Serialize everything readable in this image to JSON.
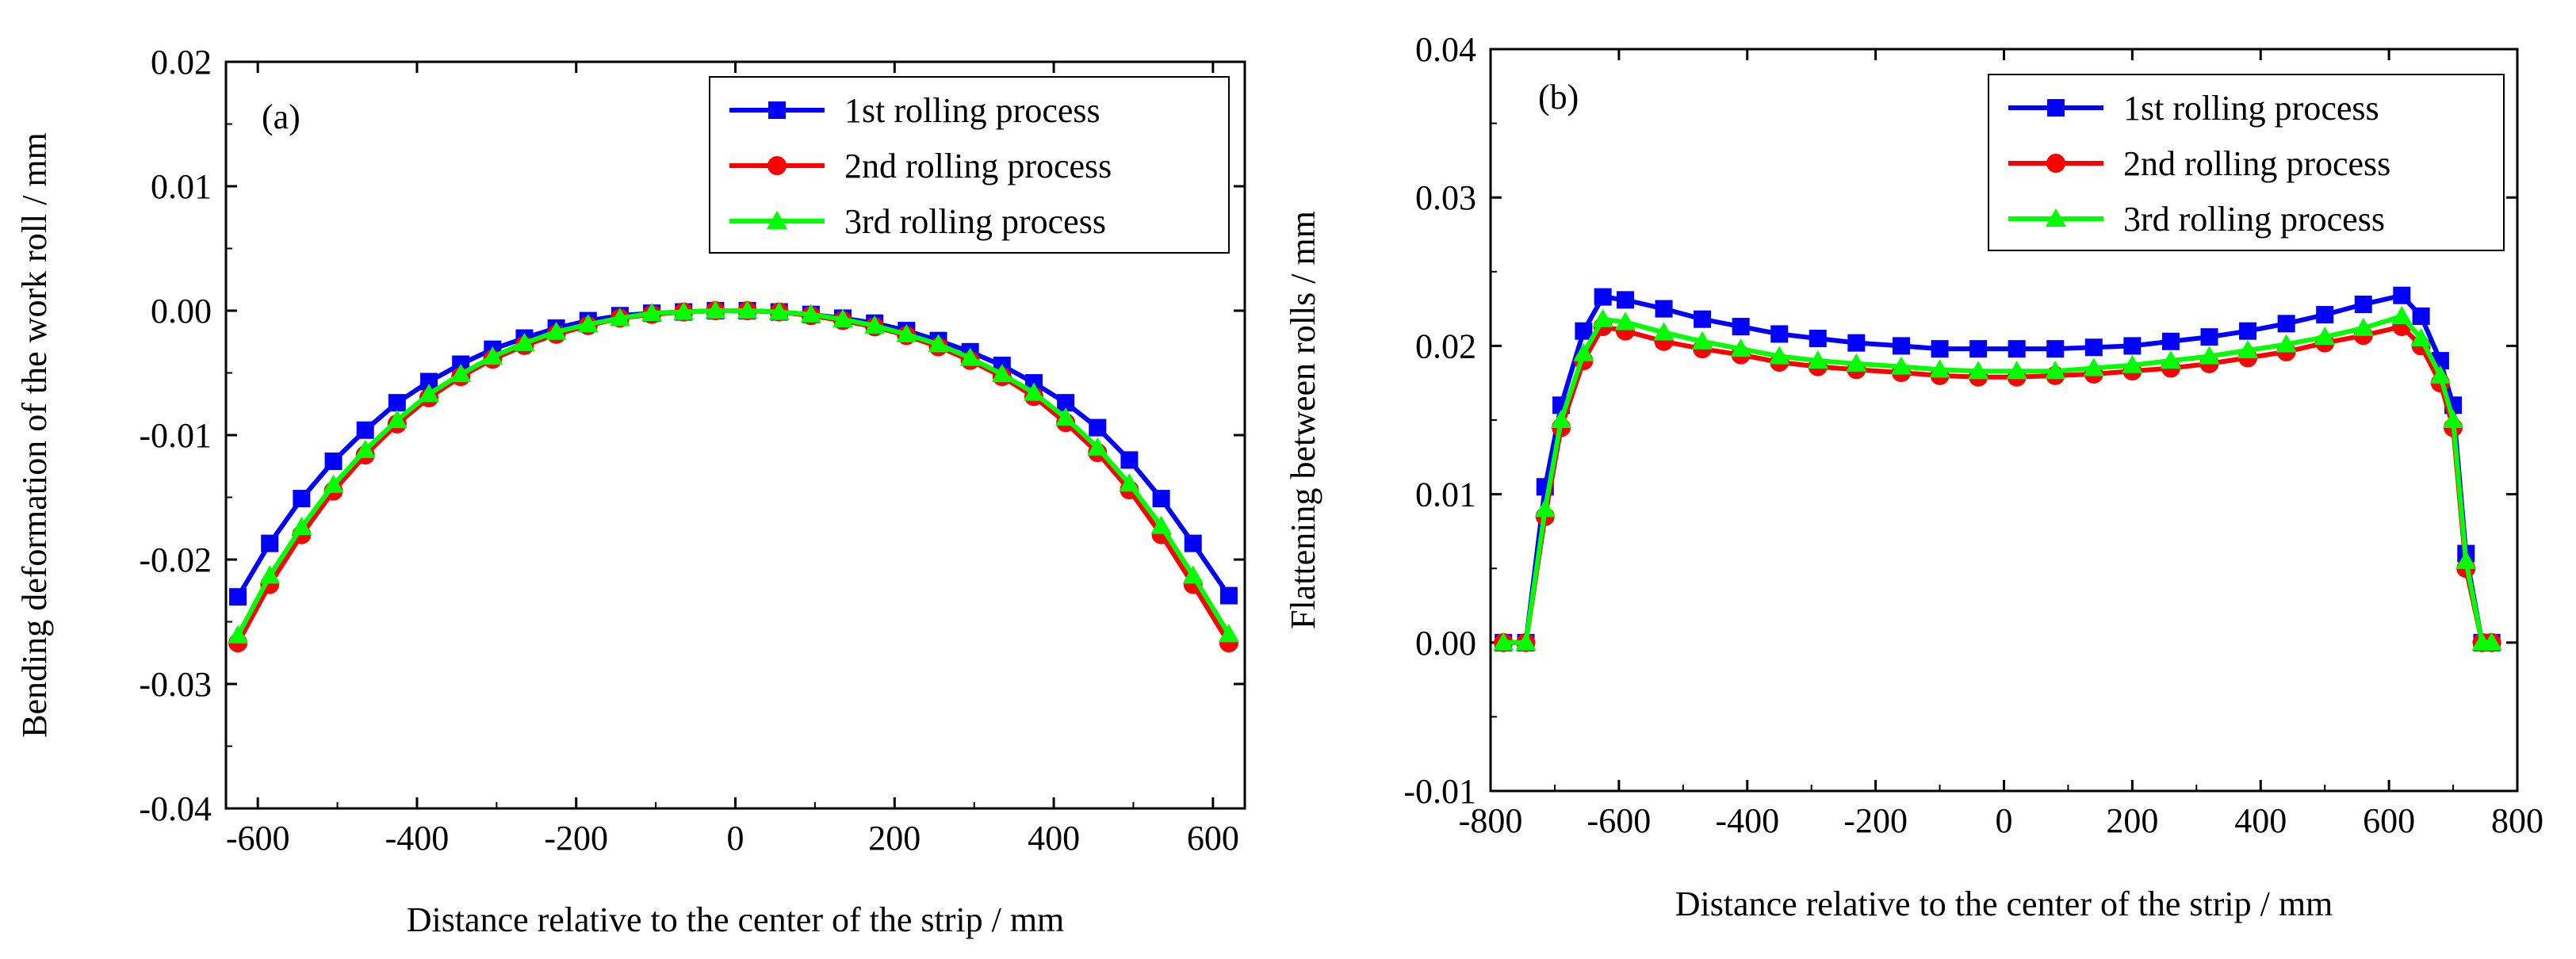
{
  "chart_data": [
    {
      "type": "line",
      "panel_label": "(a)",
      "xlabel": "Distance relative to the center of the strip / mm",
      "ylabel": "Bending deformation of the work roll / mm",
      "xlim": [
        -640,
        640
      ],
      "ylim": [
        -0.04,
        0.02
      ],
      "xticks": [
        -600,
        -400,
        -200,
        0,
        200,
        400,
        600
      ],
      "xtick_labels": [
        "-600",
        "-400",
        "-200",
        "0",
        "200",
        "400",
        "600"
      ],
      "yticks": [
        -0.04,
        -0.03,
        -0.02,
        -0.01,
        0.0,
        0.01,
        0.02
      ],
      "ytick_labels": [
        "-0.04",
        "-0.03",
        "-0.02",
        "-0.01",
        "0.00",
        "0.01",
        "0.02"
      ],
      "legend_position": "top-right",
      "grid": false,
      "x": [
        -625,
        -585,
        -545,
        -505,
        -465,
        -425,
        -385,
        -345,
        -305,
        -265,
        -225,
        -185,
        -145,
        -105,
        -65,
        -25,
        15,
        55,
        95,
        135,
        175,
        215,
        255,
        295,
        335,
        375,
        415,
        455,
        495,
        535,
        575,
        620
      ],
      "series": [
        {
          "name": "1st rolling process",
          "color": "#0000ff",
          "marker": "square",
          "values": [
            -0.023,
            -0.0187,
            -0.0151,
            -0.0121,
            -0.0096,
            -0.0074,
            -0.0057,
            -0.0043,
            -0.0031,
            -0.0022,
            -0.0014,
            -0.0008,
            -0.0004,
            -0.0002,
            -0.0001,
            0.0,
            0.0,
            -0.0001,
            -0.0003,
            -0.0006,
            -0.001,
            -0.0016,
            -0.0024,
            -0.0033,
            -0.0044,
            -0.0058,
            -0.0074,
            -0.0094,
            -0.012,
            -0.0151,
            -0.0187,
            -0.0229
          ]
        },
        {
          "name": "2nd rolling process",
          "color": "#ff0000",
          "marker": "circle",
          "values": [
            -0.0267,
            -0.022,
            -0.018,
            -0.0145,
            -0.0116,
            -0.0091,
            -0.007,
            -0.0053,
            -0.0039,
            -0.0028,
            -0.0019,
            -0.0012,
            -0.0006,
            -0.0003,
            -0.0001,
            0.0,
            0.0,
            -0.0001,
            -0.0004,
            -0.0008,
            -0.0013,
            -0.002,
            -0.0029,
            -0.004,
            -0.0053,
            -0.0069,
            -0.009,
            -0.0114,
            -0.0144,
            -0.018,
            -0.022,
            -0.0267
          ]
        },
        {
          "name": "3rd rolling process",
          "color": "#00ff00",
          "marker": "triangle",
          "values": [
            -0.0261,
            -0.0213,
            -0.0174,
            -0.014,
            -0.0112,
            -0.0088,
            -0.0067,
            -0.0051,
            -0.0037,
            -0.0026,
            -0.0017,
            -0.0011,
            -0.0006,
            -0.0002,
            -0.0001,
            0.0,
            0.0,
            -0.0001,
            -0.0003,
            -0.0007,
            -0.0012,
            -0.0019,
            -0.0027,
            -0.0038,
            -0.0051,
            -0.0066,
            -0.0086,
            -0.011,
            -0.0139,
            -0.0173,
            -0.0213,
            -0.026
          ]
        }
      ]
    },
    {
      "type": "line",
      "panel_label": "(b)",
      "xlabel": "Distance relative to the center of the strip / mm",
      "ylabel": "Flattening between rolls / mm",
      "xlim": [
        -800,
        800
      ],
      "ylim": [
        -0.01,
        0.04
      ],
      "xticks": [
        -800,
        -600,
        -400,
        -200,
        0,
        200,
        400,
        600,
        800
      ],
      "xtick_labels": [
        "-800",
        "-600",
        "-400",
        "-200",
        "0",
        "200",
        "400",
        "600",
        "800"
      ],
      "yticks": [
        -0.01,
        0.0,
        0.01,
        0.02,
        0.03,
        0.04
      ],
      "ytick_labels": [
        "-0.01",
        "0.00",
        "0.01",
        "0.02",
        "0.03",
        "0.04"
      ],
      "legend_position": "top-right",
      "grid": false,
      "series": [
        {
          "name": "1st rolling process",
          "color": "#0000ff",
          "marker": "square",
          "x": [
            -780,
            -745,
            -715,
            -690,
            -655,
            -625,
            -590,
            -530,
            -470,
            -410,
            -350,
            -290,
            -230,
            -160,
            -100,
            -40,
            20,
            80,
            140,
            200,
            260,
            320,
            380,
            440,
            500,
            560,
            620,
            650,
            680,
            700,
            720,
            745,
            760
          ],
          "values": [
            0.0,
            0.0,
            0.0105,
            0.016,
            0.021,
            0.0233,
            0.0231,
            0.0225,
            0.0218,
            0.0213,
            0.0208,
            0.0205,
            0.0202,
            0.02,
            0.0198,
            0.0198,
            0.0198,
            0.0198,
            0.0199,
            0.02,
            0.0203,
            0.0206,
            0.021,
            0.0215,
            0.0221,
            0.0228,
            0.0234,
            0.022,
            0.019,
            0.016,
            0.006,
            0.0,
            0.0
          ]
        },
        {
          "name": "2nd rolling process",
          "color": "#ff0000",
          "marker": "circle",
          "x": [
            -780,
            -745,
            -715,
            -690,
            -655,
            -625,
            -590,
            -530,
            -470,
            -410,
            -350,
            -290,
            -230,
            -160,
            -100,
            -40,
            20,
            80,
            140,
            200,
            260,
            320,
            380,
            440,
            500,
            560,
            620,
            650,
            680,
            700,
            720,
            745,
            760
          ],
          "values": [
            0.0,
            0.0,
            0.0085,
            0.0145,
            0.019,
            0.0213,
            0.021,
            0.0203,
            0.0198,
            0.0194,
            0.0189,
            0.0186,
            0.0184,
            0.0182,
            0.018,
            0.0179,
            0.0179,
            0.018,
            0.0181,
            0.0183,
            0.0185,
            0.0188,
            0.0192,
            0.0196,
            0.0202,
            0.0207,
            0.0213,
            0.02,
            0.0175,
            0.0145,
            0.005,
            0.0,
            0.0
          ]
        },
        {
          "name": "3rd rolling process",
          "color": "#00ff00",
          "marker": "triangle",
          "x": [
            -780,
            -745,
            -715,
            -690,
            -655,
            -625,
            -590,
            -530,
            -470,
            -410,
            -350,
            -290,
            -230,
            -160,
            -100,
            -40,
            20,
            80,
            140,
            200,
            260,
            320,
            380,
            440,
            500,
            560,
            620,
            650,
            680,
            700,
            720,
            745,
            760
          ],
          "values": [
            0.0,
            0.0,
            0.009,
            0.015,
            0.0195,
            0.0218,
            0.0216,
            0.0209,
            0.0203,
            0.0198,
            0.0193,
            0.019,
            0.0188,
            0.0186,
            0.0184,
            0.0183,
            0.0183,
            0.0183,
            0.0185,
            0.0187,
            0.019,
            0.0193,
            0.0197,
            0.0201,
            0.0206,
            0.0212,
            0.022,
            0.0205,
            0.018,
            0.015,
            0.0055,
            0.0,
            0.0
          ]
        }
      ]
    }
  ]
}
